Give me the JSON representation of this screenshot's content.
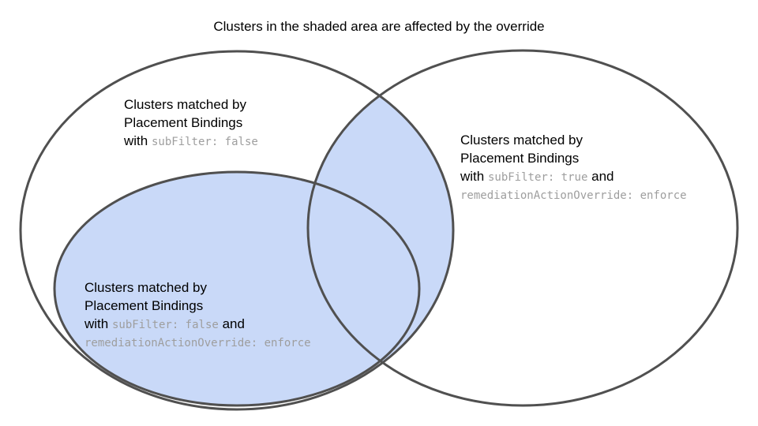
{
  "title": "Clusters in the shaded area are affected by the override",
  "colors": {
    "shade": "#c9d9f8",
    "stroke": "#505050",
    "text": "#000000",
    "code": "#9e9e9e"
  },
  "sets": {
    "left": {
      "line1": "Clusters matched by",
      "line2": "Placement Bindings",
      "with": "with",
      "code1": "subFilter: false"
    },
    "right": {
      "line1": "Clusters matched by",
      "line2": "Placement Bindings",
      "with": "with",
      "code1": "subFilter: true",
      "and": "and",
      "code2": "remediationActionOverride: enforce"
    },
    "inner": {
      "line1": "Clusters matched by",
      "line2": "Placement Bindings",
      "with": "with",
      "code1": "subFilter: false",
      "and": "and",
      "code2": "remediationActionOverride: enforce"
    }
  }
}
